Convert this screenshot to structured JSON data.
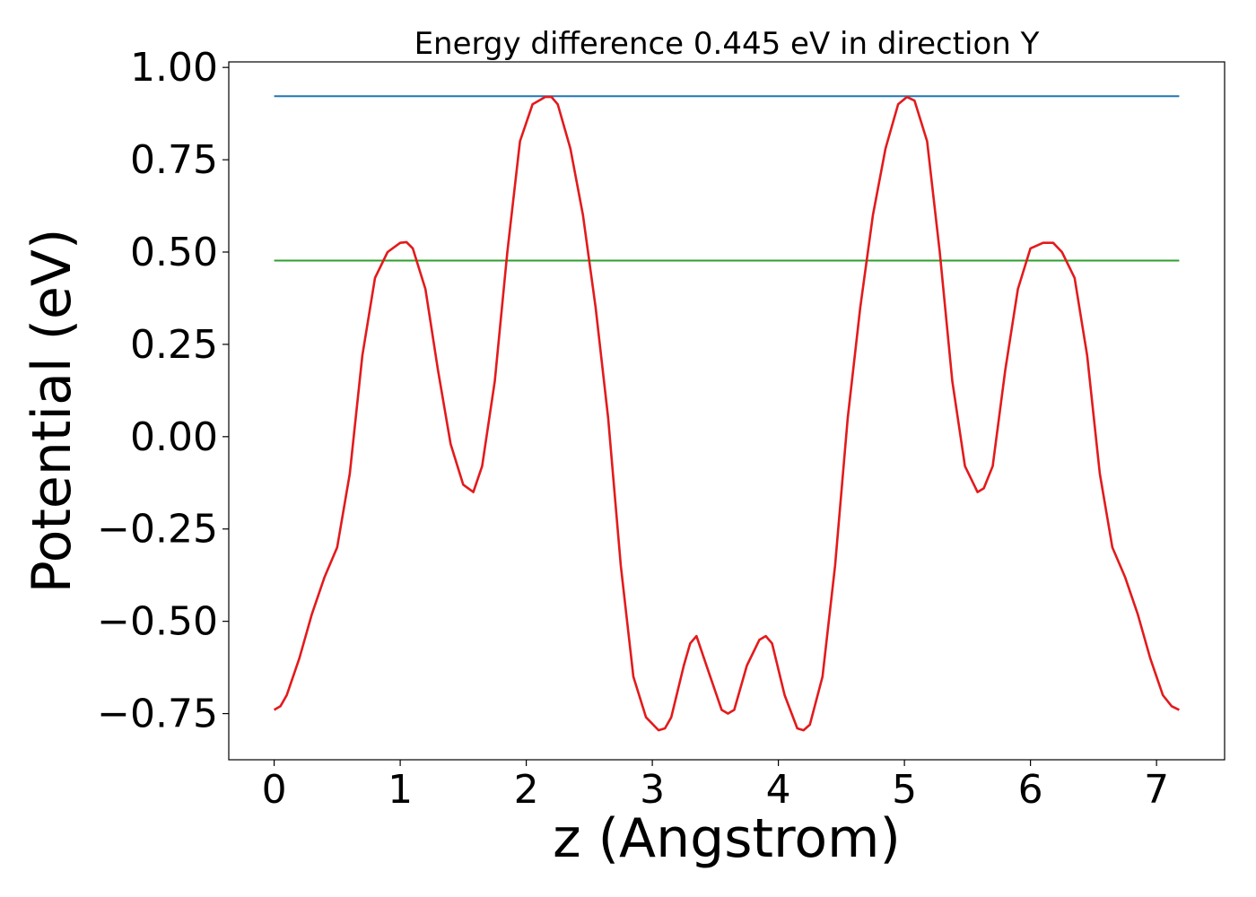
{
  "chart_data": {
    "type": "line",
    "title": "Energy difference 0.445 eV in direction Y",
    "xlabel": "z (Angstrom)",
    "ylabel": "Potential (eV)",
    "xlim": [
      -0.36,
      7.54
    ],
    "ylim": [
      -0.875,
      1.015
    ],
    "xticks": [
      0,
      1,
      2,
      3,
      4,
      5,
      6,
      7
    ],
    "xtick_labels": [
      "0",
      "1",
      "2",
      "3",
      "4",
      "5",
      "6",
      "7"
    ],
    "yticks": [
      1.0,
      0.75,
      0.5,
      0.25,
      0.0,
      -0.25,
      -0.5,
      -0.75
    ],
    "ytick_labels": [
      "1.00",
      "0.75",
      "0.50",
      "0.25",
      "0.00",
      "−0.25",
      "−0.50",
      "−0.75"
    ],
    "grid": false,
    "series": [
      {
        "color": "#1f77b4",
        "x": [
          0,
          7.18
        ],
        "y": [
          0.922,
          0.922
        ]
      },
      {
        "color": "#2ca02c",
        "x": [
          0,
          7.18
        ],
        "y": [
          0.477,
          0.477
        ]
      },
      {
        "color": "#e31a1c",
        "x": [
          0,
          0.05,
          0.1,
          0.2,
          0.3,
          0.4,
          0.5,
          0.6,
          0.7,
          0.8,
          0.9,
          1.0,
          1.05,
          1.1,
          1.2,
          1.3,
          1.4,
          1.5,
          1.58,
          1.65,
          1.75,
          1.85,
          1.95,
          2.05,
          2.15,
          2.2,
          2.25,
          2.35,
          2.45,
          2.55,
          2.65,
          2.75,
          2.85,
          2.95,
          3.05,
          3.1,
          3.15,
          3.25,
          3.3,
          3.35,
          3.45,
          3.55,
          3.6,
          3.65,
          3.75,
          3.85,
          3.9,
          3.95,
          4.05,
          4.15,
          4.2,
          4.25,
          4.35,
          4.45,
          4.55,
          4.65,
          4.75,
          4.85,
          4.95,
          5.02,
          5.08,
          5.18,
          5.28,
          5.38,
          5.48,
          5.58,
          5.63,
          5.7,
          5.8,
          5.9,
          6.0,
          6.1,
          6.18,
          6.25,
          6.35,
          6.45,
          6.55,
          6.65,
          6.75,
          6.85,
          6.95,
          7.05,
          7.12,
          7.18
        ],
        "y": [
          -0.74,
          -0.73,
          -0.7,
          -0.6,
          -0.48,
          -0.38,
          -0.3,
          -0.1,
          0.22,
          0.43,
          0.5,
          0.525,
          0.527,
          0.51,
          0.4,
          0.18,
          -0.02,
          -0.13,
          -0.15,
          -0.08,
          0.15,
          0.5,
          0.8,
          0.9,
          0.92,
          0.92,
          0.9,
          0.78,
          0.6,
          0.35,
          0.05,
          -0.35,
          -0.65,
          -0.76,
          -0.795,
          -0.79,
          -0.76,
          -0.62,
          -0.56,
          -0.54,
          -0.64,
          -0.74,
          -0.75,
          -0.74,
          -0.62,
          -0.55,
          -0.54,
          -0.56,
          -0.7,
          -0.79,
          -0.795,
          -0.78,
          -0.65,
          -0.35,
          0.05,
          0.35,
          0.6,
          0.78,
          0.9,
          0.92,
          0.91,
          0.8,
          0.5,
          0.15,
          -0.08,
          -0.15,
          -0.14,
          -0.08,
          0.18,
          0.4,
          0.51,
          0.525,
          0.525,
          0.5,
          0.43,
          0.22,
          -0.1,
          -0.3,
          -0.38,
          -0.48,
          -0.6,
          -0.7,
          -0.73,
          -0.74
        ]
      }
    ]
  }
}
